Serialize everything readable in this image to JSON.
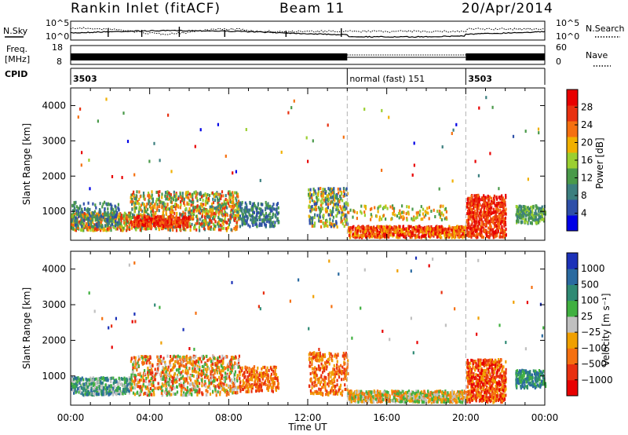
{
  "header": {
    "station": "Rankin Inlet (fitACF)",
    "beam": "Beam 11",
    "date": "20/Apr/2014"
  },
  "status_panels": {
    "nsky_label": "N.Sky",
    "nsearch_label": "N.Search",
    "noise_ticks": [
      "10^5",
      "10^0"
    ],
    "freq_label": "Freq.",
    "freq_unit": "[MHz]",
    "freq_ticks": [
      "18",
      "8"
    ],
    "nave_label": "Nave",
    "nave_ticks": [
      "60",
      "0"
    ],
    "cpid_label": "CPID",
    "cpid_segments": [
      {
        "label": "3503",
        "start_h": 0,
        "end_h": 14
      },
      {
        "label": "normal (fast) 151",
        "start_h": 14,
        "end_h": 20
      },
      {
        "label": "3503",
        "start_h": 20,
        "end_h": 24
      }
    ]
  },
  "colors": {
    "power_scale": [
      "#0000e6",
      "#2e4fa8",
      "#3c7f7f",
      "#4a9a4a",
      "#9bcf30",
      "#f0b000",
      "#f57010",
      "#e83010",
      "#e80000"
    ],
    "velocity_scale": [
      "#1c32b8",
      "#2a6aa0",
      "#2f8a74",
      "#40b040",
      "#c0c0c0",
      "#f0a000",
      "#f57010",
      "#e83010",
      "#e80000"
    ]
  },
  "chart_data": [
    {
      "type": "heatmap",
      "panel": "power",
      "xlabel": "",
      "ylabel": "Slant Range [km]",
      "xlim": [
        0,
        24
      ],
      "ylim": [
        180,
        4500
      ],
      "yticks": [
        1000,
        2000,
        3000,
        4000
      ],
      "colorbar": {
        "label": "Power [dB]",
        "ticks": [
          "4",
          "8",
          "12",
          "16",
          "20",
          "24",
          "28"
        ],
        "range": [
          0,
          30
        ]
      },
      "cpid_change_times_h": [
        14,
        20
      ]
    },
    {
      "type": "heatmap",
      "panel": "velocity",
      "xlabel": "Time UT",
      "ylabel": "Slant Range [km]",
      "xlim": [
        0,
        24
      ],
      "ylim": [
        180,
        4500
      ],
      "yticks": [
        1000,
        2000,
        3000,
        4000
      ],
      "xticks": [
        "00:00",
        "04:00",
        "08:00",
        "12:00",
        "16:00",
        "20:00",
        "00:00"
      ],
      "colorbar": {
        "label": "Velocity [m s⁻¹]",
        "ticks": [
          "1000",
          "500",
          "100",
          "25",
          "−25",
          "−100",
          "−500",
          "−1000"
        ]
      },
      "cpid_change_times_h": [
        14,
        20
      ]
    }
  ]
}
